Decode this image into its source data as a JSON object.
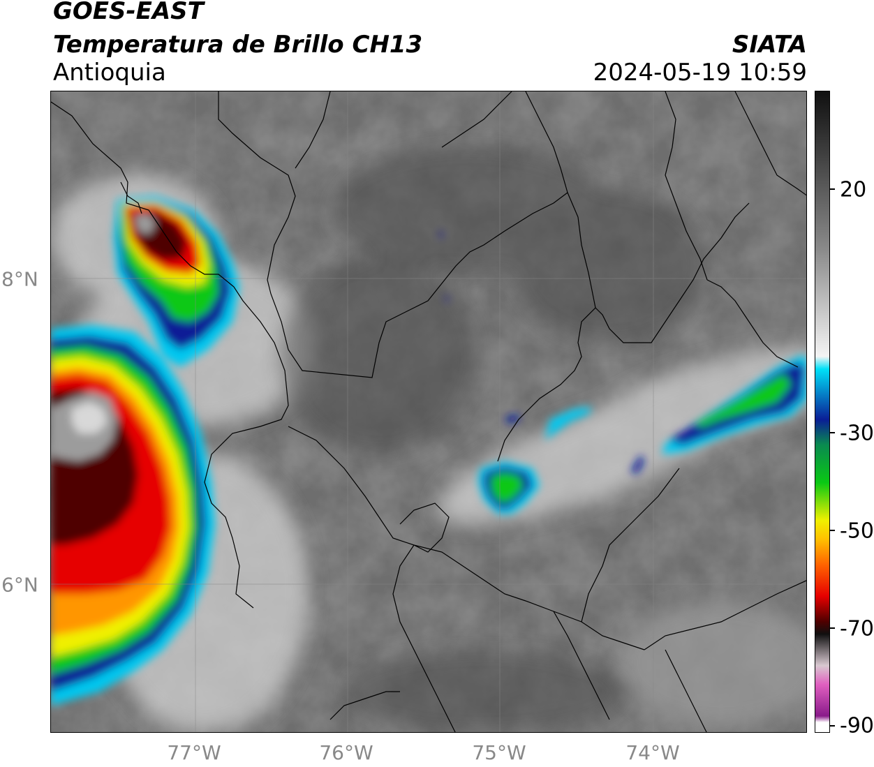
{
  "header": {
    "satellite": "GOES-EAST",
    "product": "Temperatura de Brillo CH13",
    "region": "Antioquia",
    "organization": "SIATA",
    "datetime": "2024-05-19 10:59"
  },
  "map": {
    "longitude_labels": [
      "77°W",
      "76°W",
      "75°W",
      "74°W"
    ],
    "latitude_labels": [
      "8°N",
      "6°N"
    ]
  },
  "colorbar": {
    "tick_labels": [
      "20",
      "-30",
      "-50",
      "-70",
      "-90"
    ],
    "colors": {
      "warm_gray": "#8a8a8a",
      "cyan": "#00c8f0",
      "blue": "#0a1e96",
      "green": "#0ac814",
      "yellow": "#f0f000",
      "orange": "#ff9600",
      "red": "#e60000",
      "dark_red": "#500000",
      "magenta": "#c846c8"
    }
  }
}
